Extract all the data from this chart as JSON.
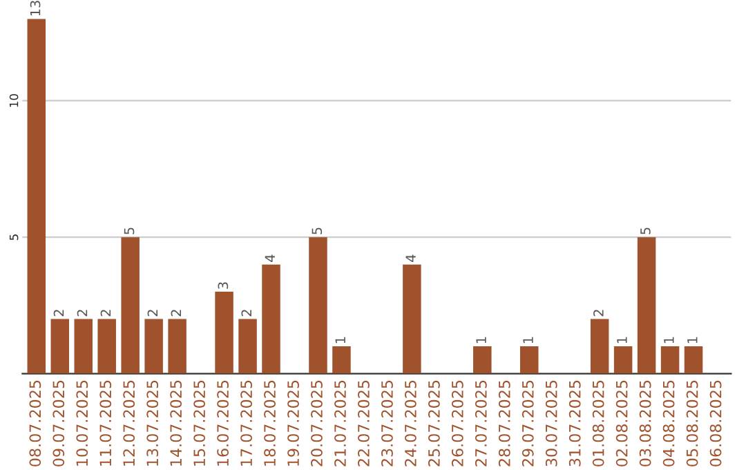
{
  "chart_data": {
    "type": "bar",
    "categories": [
      "08.07.2025",
      "09.07.2025",
      "10.07.2025",
      "11.07.2025",
      "12.07.2025",
      "13.07.2025",
      "14.07.2025",
      "15.07.2025",
      "16.07.2025",
      "17.07.2025",
      "18.07.2025",
      "19.07.2025",
      "20.07.2025",
      "21.07.2025",
      "22.07.2025",
      "23.07.2025",
      "24.07.2025",
      "25.07.2025",
      "26.07.2025",
      "27.07.2025",
      "28.07.2025",
      "29.07.2025",
      "30.07.2025",
      "31.07.2025",
      "01.08.2025",
      "02.08.2025",
      "03.08.2025",
      "04.08.2025",
      "05.08.2025",
      "06.08.2025"
    ],
    "values": [
      13,
      2,
      2,
      2,
      5,
      2,
      2,
      null,
      3,
      2,
      4,
      null,
      5,
      1,
      null,
      null,
      4,
      null,
      null,
      1,
      null,
      1,
      null,
      null,
      2,
      1,
      5,
      1,
      1,
      null
    ],
    "value_labels": [
      "13",
      "2",
      "2",
      "2",
      "5",
      "2",
      "2",
      null,
      "3",
      "2",
      "4",
      null,
      "5",
      "1",
      null,
      null,
      "4",
      null,
      null,
      "1",
      null,
      "1",
      null,
      null,
      "2",
      "1",
      "5",
      "1",
      "1",
      null
    ],
    "color": "#a0522d",
    "ylim": [
      0,
      13
    ],
    "yticks": [
      5,
      10
    ],
    "grid": "y"
  }
}
